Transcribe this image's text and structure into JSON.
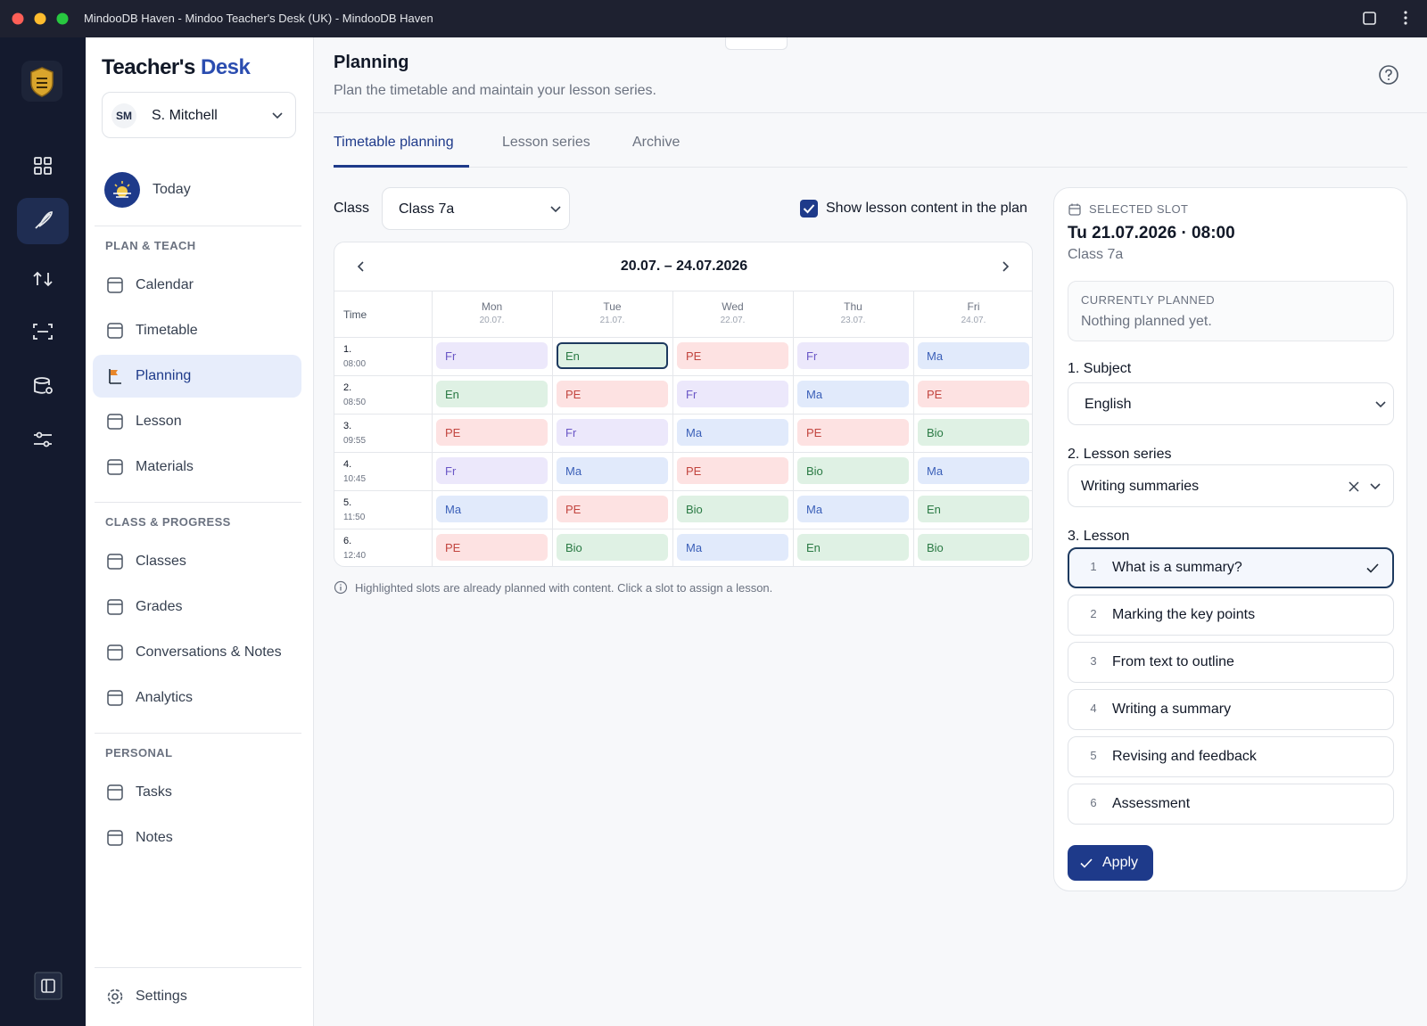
{
  "window": {
    "title": "MindooDB Haven - Mindoo Teacher's Desk (UK) - MindooDB Haven"
  },
  "sidebar": {
    "brand": {
      "part1": "Teacher's",
      "part2": "Desk"
    },
    "user": {
      "initials": "SM",
      "name": "S. Mitchell"
    },
    "today": "Today",
    "sections": [
      {
        "title": "PLAN & TEACH",
        "items": [
          "Calendar",
          "Timetable",
          "Planning",
          "Lesson",
          "Materials"
        ]
      },
      {
        "title": "CLASS & PROGRESS",
        "items": [
          "Classes",
          "Grades",
          "Conversations & Notes",
          "Analytics"
        ]
      },
      {
        "title": "PERSONAL",
        "items": [
          "Tasks",
          "Notes"
        ]
      }
    ],
    "settings": "Settings"
  },
  "header": {
    "title": "Planning",
    "subtitle": "Plan the timetable and maintain your lesson series."
  },
  "tabs": [
    "Timetable planning",
    "Lesson series",
    "Archive"
  ],
  "filters": {
    "class_label": "Class",
    "class_value": "Class 7a",
    "show_content": "Show lesson content in the plan"
  },
  "timetable": {
    "range": "20.07. – 24.07.2026",
    "time_header": "Time",
    "days": [
      {
        "name": "Mon",
        "date": "20.07."
      },
      {
        "name": "Tue",
        "date": "21.07."
      },
      {
        "name": "Wed",
        "date": "22.07."
      },
      {
        "name": "Thu",
        "date": "23.07."
      },
      {
        "name": "Fri",
        "date": "24.07."
      }
    ],
    "periods": [
      {
        "number": "1.",
        "time": "08:00"
      },
      {
        "number": "2.",
        "time": "08:50"
      },
      {
        "number": "3.",
        "time": "09:55"
      },
      {
        "number": "4.",
        "time": "10:45"
      },
      {
        "number": "5.",
        "time": "11:50"
      },
      {
        "number": "6.",
        "time": "12:40"
      }
    ],
    "slots": [
      [
        "Fr",
        "En",
        "PE",
        "Fr",
        "Ma"
      ],
      [
        "En",
        "PE",
        "Fr",
        "Ma",
        "PE"
      ],
      [
        "PE",
        "Fr",
        "Ma",
        "PE",
        "Bio"
      ],
      [
        "Fr",
        "Ma",
        "PE",
        "Bio",
        "Ma"
      ],
      [
        "Ma",
        "PE",
        "Bio",
        "Ma",
        "En"
      ],
      [
        "PE",
        "Bio",
        "Ma",
        "En",
        "Bio"
      ]
    ],
    "subject_colors": {
      "Fr": {
        "bg": "#ece8fb",
        "fg": "#6a56c6"
      },
      "En": {
        "bg": "#dff1e4",
        "fg": "#2a7a44"
      },
      "PE": {
        "bg": "#fde2e2",
        "fg": "#c2453f"
      },
      "Ma": {
        "bg": "#e1eafb",
        "fg": "#3a5fb8"
      },
      "Bio": {
        "bg": "#dff1e4",
        "fg": "#2a7a44"
      }
    }
  },
  "hint": "Highlighted slots are already planned with content. Click a slot to assign a lesson.",
  "slot_panel": {
    "label": "SELECTED SLOT",
    "datetime": "Tu 21.07.2026 · 08:00",
    "class": "Class 7a",
    "current_label": "CURRENTLY PLANNED",
    "current_value": "Nothing planned yet.",
    "subject_label": "1. Subject",
    "subject_value": "English",
    "series_label": "2. Lesson series",
    "series_value": "Writing summaries",
    "lesson_label": "3. Lesson",
    "lessons": [
      {
        "number": 1,
        "title": "What is a summary?"
      },
      {
        "number": 2,
        "title": "Marking the key points"
      },
      {
        "number": 3,
        "title": "From text to outline"
      },
      {
        "number": 4,
        "title": "Writing a summary"
      },
      {
        "number": 5,
        "title": "Revising and feedback"
      },
      {
        "number": 6,
        "title": "Assessment"
      }
    ],
    "apply": "Apply"
  }
}
